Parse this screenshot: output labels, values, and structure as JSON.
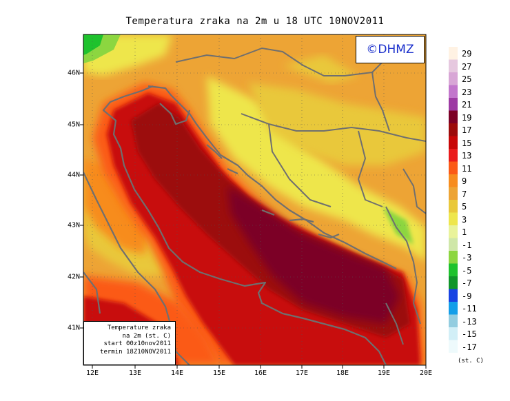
{
  "title": "Temperatura zraka na 2m u 18 UTC 10NOV2011",
  "logo": "©DHMZ",
  "info_box": [
    "Temperature zraka",
    "na 2m (st. C)",
    "start 00z10nov2011",
    "termin 18Z10NOV2011"
  ],
  "y_axis_labels": [
    "46N",
    "45N",
    "44N",
    "43N",
    "42N",
    "41N"
  ],
  "x_axis_labels": [
    "12E",
    "13E",
    "14E",
    "15E",
    "16E",
    "17E",
    "18E",
    "19E",
    "20E"
  ],
  "legend": {
    "units": "(st. C)",
    "labels": [
      "29",
      "27",
      "25",
      "23",
      "21",
      "19",
      "17",
      "15",
      "13",
      "11",
      "9",
      "7",
      "5",
      "3",
      "1",
      "-1",
      "-3",
      "-5",
      "-7",
      "-9",
      "-11",
      "-13",
      "-15",
      "-17"
    ],
    "colors": [
      "#fff2e3",
      "#e6c8df",
      "#d8a6d6",
      "#c276cc",
      "#9d3aa3",
      "#7c0026",
      "#9c0b0b",
      "#c80707",
      "#ea1b1b",
      "#fb5a16",
      "#f78c1e",
      "#eda435",
      "#e9c83a",
      "#eee64c",
      "#e9f39a",
      "#cfe7a8",
      "#8cd640",
      "#1ec22d",
      "#10952a",
      "#1743e3",
      "#139ee9",
      "#93cde0",
      "#d2eff7",
      "#eefafc"
    ]
  },
  "map_extent": {
    "lon_min": 11.8,
    "lon_max": 20.0,
    "lat_min": 40.3,
    "lat_max": 46.8
  },
  "gridlines": true,
  "colors": {
    "frame": "#000000",
    "coastline": "#6f6f6f",
    "gridline": "#555555"
  }
}
